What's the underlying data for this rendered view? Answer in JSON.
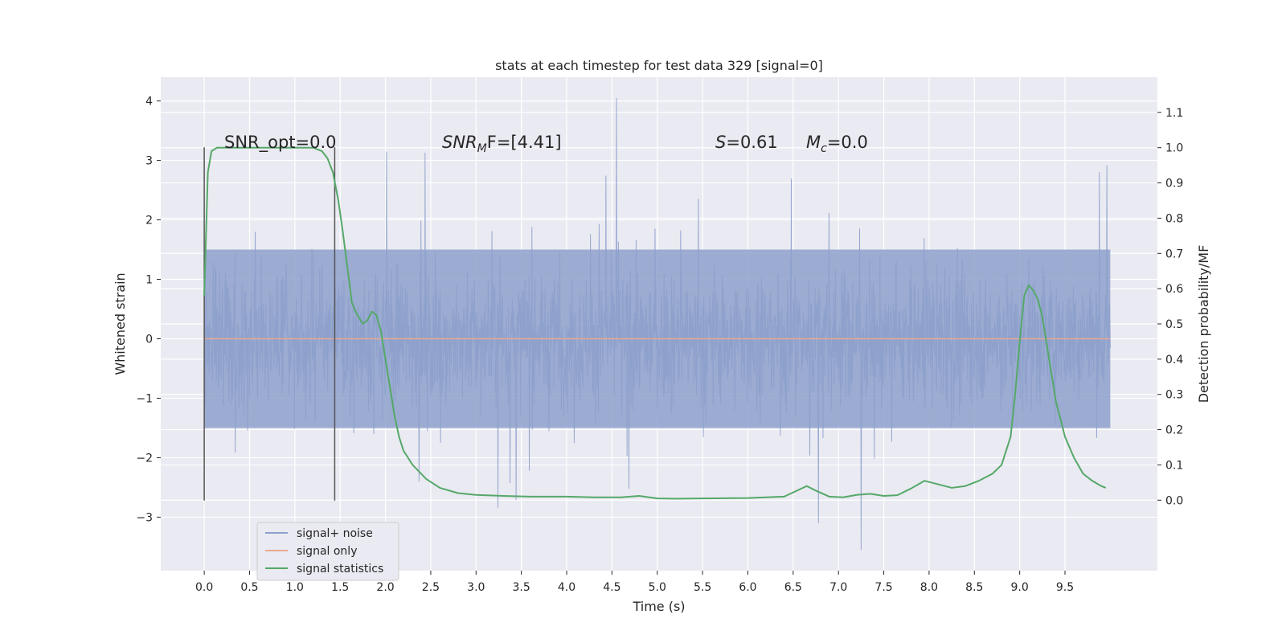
{
  "chart_data": {
    "type": "line",
    "title": "stats at each timestep for test data 329 [signal=0]",
    "xlabel": "Time (s)",
    "ylabel_left": "Whitened strain",
    "ylabel_right": "Detection probability/MF",
    "xlim": [
      -0.48,
      10.52
    ],
    "ylim_left": [
      -3.9,
      4.4
    ],
    "ylim_right": [
      -0.2,
      1.2
    ],
    "x_ticks": [
      0.0,
      0.5,
      1.0,
      1.5,
      2.0,
      2.5,
      3.0,
      3.5,
      4.0,
      4.5,
      5.0,
      5.5,
      6.0,
      6.5,
      7.0,
      7.5,
      8.0,
      8.5,
      9.0,
      9.5
    ],
    "x_tick_labels": [
      "0.0",
      "0.5",
      "1.0",
      "1.5",
      "2.0",
      "2.5",
      "3.0",
      "3.5",
      "4.0",
      "4.5",
      "5.0",
      "5.5",
      "6.0",
      "6.5",
      "7.0",
      "7.5",
      "8.0",
      "8.5",
      "9.0",
      "9.5"
    ],
    "y_ticks_left": [
      -3,
      -2,
      -1,
      0,
      1,
      2,
      3,
      4
    ],
    "y_tick_labels_left": [
      "−3",
      "−2",
      "−1",
      "0",
      "1",
      "2",
      "3",
      "4"
    ],
    "y_ticks_right": [
      0.0,
      0.1,
      0.2,
      0.3,
      0.4,
      0.5,
      0.6,
      0.7,
      0.8,
      0.9,
      1.0,
      1.1
    ],
    "y_tick_labels_right": [
      "0.0",
      "0.1",
      "0.2",
      "0.3",
      "0.4",
      "0.5",
      "0.6",
      "0.7",
      "0.8",
      "0.9",
      "1.0",
      "1.1"
    ],
    "grid": true,
    "legend_position": "lower-left",
    "legend": [
      {
        "name": "signal+ noise",
        "color": "#8da0cb"
      },
      {
        "name": "signal only",
        "color": "#e9a88f"
      },
      {
        "name": "signal statistics",
        "color": "#55a868"
      }
    ],
    "annotations": {
      "snr_opt": "SNR_opt=0.0",
      "snr_mf_prefix": "SNR",
      "snr_mf_sub": "M",
      "snr_mf_suffix": "F=[4.41]",
      "s_var": "S",
      "s_value": "=0.61",
      "mc_var": "M",
      "mc_sub": "c",
      "mc_value": "=0.0"
    },
    "vertical_markers_x": [
      0.0,
      1.44
    ],
    "vertical_markers_ylim": [
      -2.72,
      3.22
    ],
    "series": [
      {
        "name": "signal+ noise",
        "color": "#8da0cb",
        "x_range": [
          0.0,
          10.0
        ],
        "band_typical": [
          -2.2,
          2.3
        ],
        "band_core": [
          -1.5,
          1.5
        ],
        "peak_max": 4.05,
        "peak_max_x": 4.55,
        "peak_min": -3.55,
        "peak_min_x": 7.25
      },
      {
        "name": "signal only",
        "color": "#e9a88f",
        "x": [
          0.0,
          10.0
        ],
        "y": [
          0.0,
          0.0
        ]
      },
      {
        "name": "signal statistics",
        "color": "#55a868",
        "axis": "right",
        "x": [
          0.0,
          0.04,
          0.08,
          0.14,
          0.22,
          0.35,
          0.6,
          0.9,
          1.2,
          1.3,
          1.36,
          1.42,
          1.48,
          1.53,
          1.58,
          1.63,
          1.68,
          1.75,
          1.8,
          1.85,
          1.9,
          1.95,
          2.0,
          2.05,
          2.1,
          2.15,
          2.2,
          2.3,
          2.45,
          2.6,
          2.8,
          3.0,
          3.3,
          3.6,
          4.0,
          4.3,
          4.6,
          4.8,
          5.0,
          5.2,
          5.5,
          6.0,
          6.4,
          6.55,
          6.65,
          6.75,
          6.9,
          7.05,
          7.2,
          7.35,
          7.5,
          7.65,
          7.8,
          7.95,
          8.1,
          8.25,
          8.4,
          8.55,
          8.7,
          8.8,
          8.9,
          8.95,
          9.0,
          9.05,
          9.1,
          9.15,
          9.2,
          9.25,
          9.3,
          9.35,
          9.4,
          9.45,
          9.5,
          9.6,
          9.7,
          9.8,
          9.9,
          9.95
        ],
        "y": [
          0.58,
          0.93,
          0.99,
          1.0,
          1.0,
          1.0,
          1.0,
          1.0,
          1.0,
          0.99,
          0.97,
          0.93,
          0.85,
          0.76,
          0.66,
          0.56,
          0.53,
          0.5,
          0.51,
          0.535,
          0.525,
          0.48,
          0.4,
          0.32,
          0.24,
          0.18,
          0.14,
          0.1,
          0.06,
          0.035,
          0.02,
          0.015,
          0.012,
          0.01,
          0.01,
          0.008,
          0.008,
          0.012,
          0.005,
          0.004,
          0.005,
          0.006,
          0.01,
          0.028,
          0.04,
          0.027,
          0.01,
          0.008,
          0.015,
          0.018,
          0.012,
          0.014,
          0.033,
          0.055,
          0.045,
          0.035,
          0.04,
          0.055,
          0.075,
          0.1,
          0.18,
          0.3,
          0.45,
          0.58,
          0.61,
          0.595,
          0.57,
          0.52,
          0.44,
          0.36,
          0.28,
          0.23,
          0.18,
          0.12,
          0.075,
          0.055,
          0.04,
          0.035
        ]
      }
    ]
  }
}
